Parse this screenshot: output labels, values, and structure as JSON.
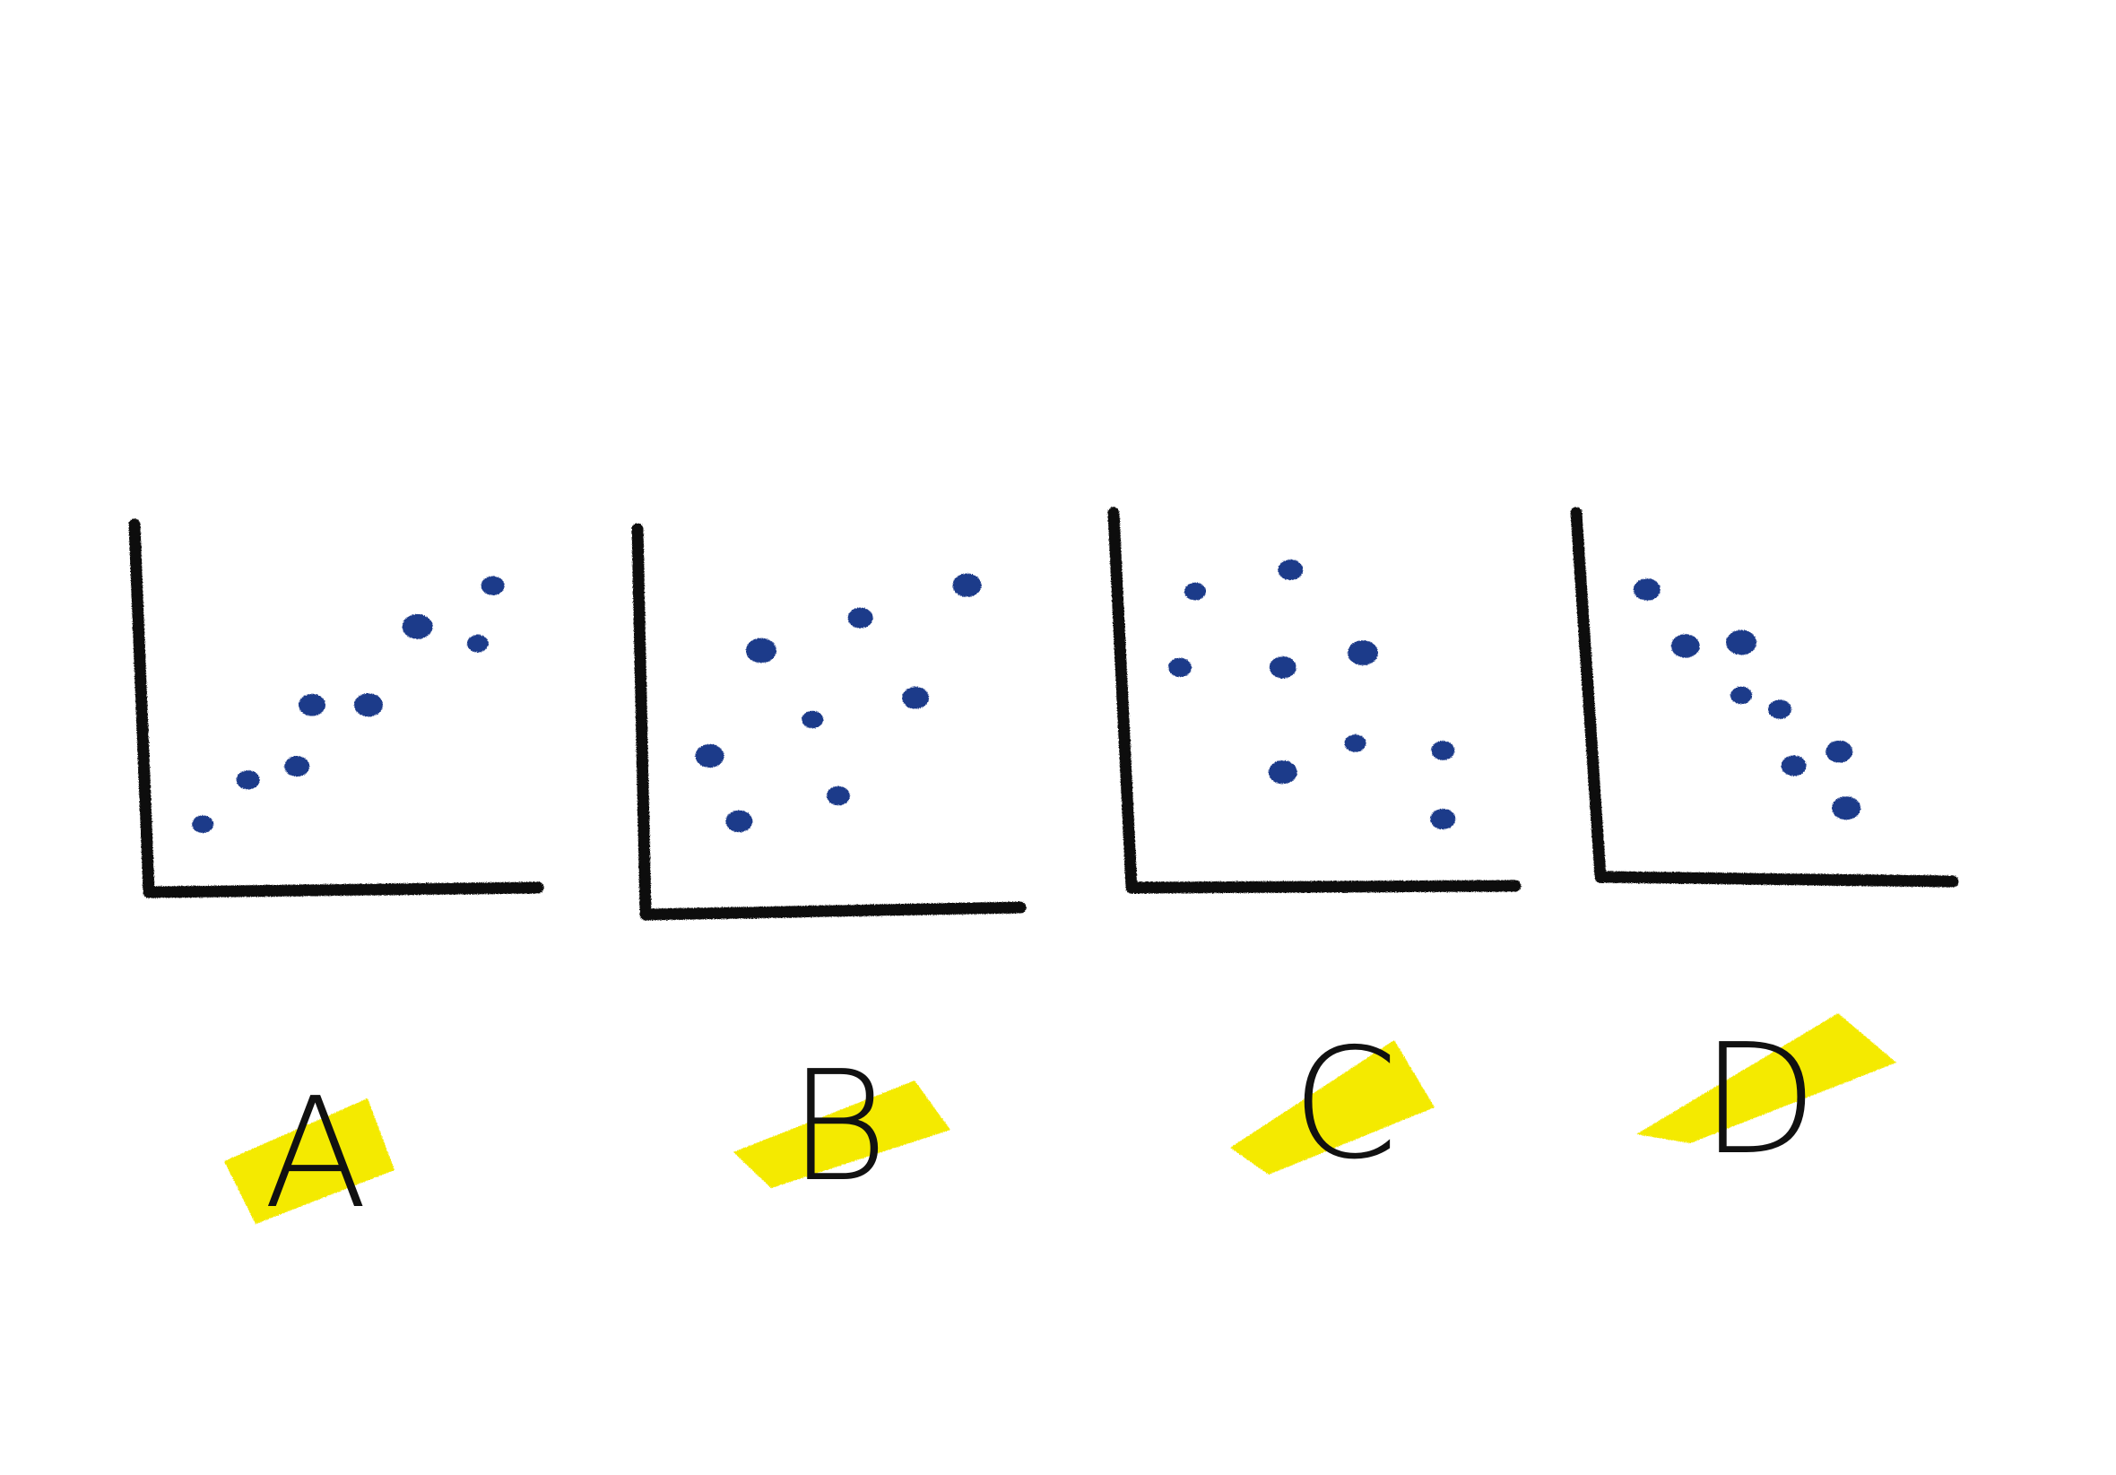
{
  "colors": {
    "background": "#ffffff",
    "axis": "#111111",
    "point": "#1e3a8a",
    "highlight": "#f4ea00"
  },
  "chart_data": [
    {
      "type": "scatter",
      "label": "A",
      "xlim": [
        0,
        10
      ],
      "ylim": [
        0,
        10
      ],
      "points": [
        {
          "x": 1.1,
          "y": 1.6
        },
        {
          "x": 2.3,
          "y": 2.9
        },
        {
          "x": 3.6,
          "y": 3.3
        },
        {
          "x": 4.0,
          "y": 5.1
        },
        {
          "x": 5.5,
          "y": 5.1
        },
        {
          "x": 6.8,
          "y": 7.4
        },
        {
          "x": 8.4,
          "y": 6.9
        },
        {
          "x": 8.8,
          "y": 8.6
        }
      ]
    },
    {
      "type": "scatter",
      "label": "B",
      "xlim": [
        0,
        10
      ],
      "ylim": [
        0,
        10
      ],
      "points": [
        {
          "x": 2.3,
          "y": 2.2
        },
        {
          "x": 1.5,
          "y": 4.0
        },
        {
          "x": 2.9,
          "y": 6.9
        },
        {
          "x": 4.3,
          "y": 5.0
        },
        {
          "x": 5.0,
          "y": 2.9
        },
        {
          "x": 5.6,
          "y": 7.8
        },
        {
          "x": 7.1,
          "y": 5.6
        },
        {
          "x": 8.5,
          "y": 8.7
        }
      ]
    },
    {
      "type": "scatter",
      "label": "C",
      "xlim": [
        0,
        10
      ],
      "ylim": [
        0,
        10
      ],
      "points": [
        {
          "x": 1.6,
          "y": 7.9
        },
        {
          "x": 1.2,
          "y": 5.8
        },
        {
          "x": 4.1,
          "y": 8.5
        },
        {
          "x": 3.9,
          "y": 5.8
        },
        {
          "x": 3.9,
          "y": 2.9
        },
        {
          "x": 6.0,
          "y": 6.2
        },
        {
          "x": 5.8,
          "y": 3.7
        },
        {
          "x": 8.1,
          "y": 3.5
        },
        {
          "x": 8.1,
          "y": 1.6
        }
      ]
    },
    {
      "type": "scatter",
      "label": "D",
      "xlim": [
        0,
        10
      ],
      "ylim": [
        0,
        10
      ],
      "points": [
        {
          "x": 1.2,
          "y": 7.9
        },
        {
          "x": 2.3,
          "y": 6.3
        },
        {
          "x": 3.9,
          "y": 6.4
        },
        {
          "x": 3.9,
          "y": 4.9
        },
        {
          "x": 5.0,
          "y": 4.5
        },
        {
          "x": 5.4,
          "y": 2.9
        },
        {
          "x": 6.7,
          "y": 3.3
        },
        {
          "x": 6.9,
          "y": 1.7
        }
      ]
    }
  ]
}
